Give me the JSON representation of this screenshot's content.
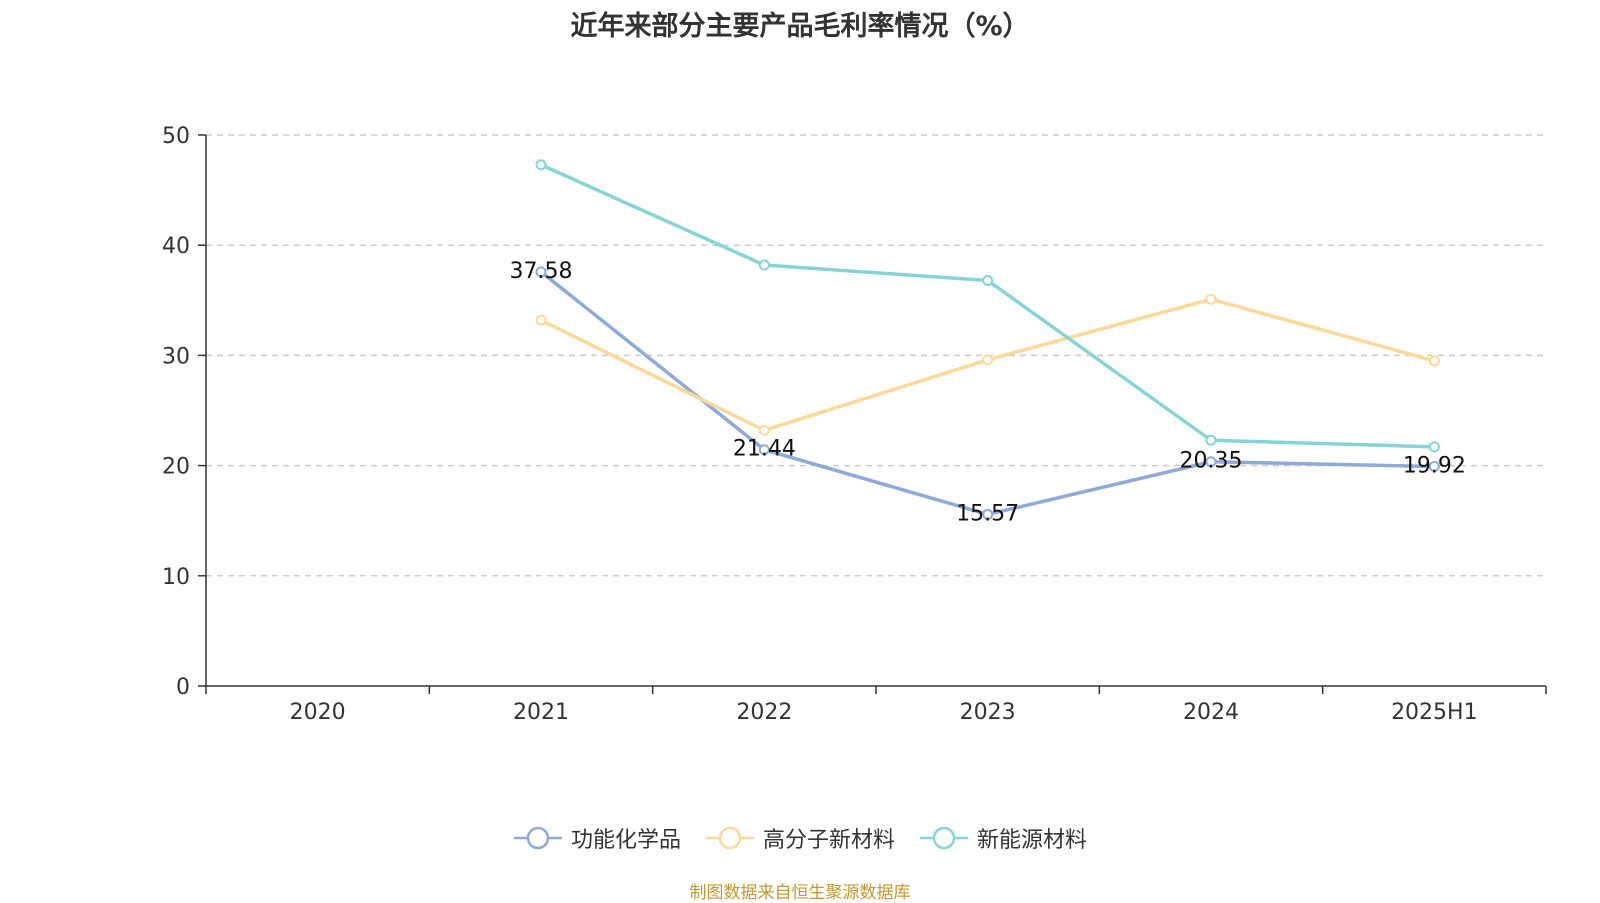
{
  "chart_data": {
    "type": "line",
    "title": "近年来部分主要产品毛利率情况（%）",
    "categories": [
      "2020",
      "2021",
      "2022",
      "2023",
      "2024",
      "2025H1"
    ],
    "ylim": [
      0,
      50
    ],
    "yticks": [
      0,
      10,
      20,
      30,
      40,
      50
    ],
    "grid": true,
    "legend_position": "bottom",
    "series": [
      {
        "name": "功能化学品",
        "color": "#8eaad8",
        "values": [
          null,
          37.58,
          21.44,
          15.57,
          20.35,
          19.92
        ],
        "labeled": true
      },
      {
        "name": "高分子新材料",
        "color": "#fcd899",
        "values": [
          null,
          33.2,
          23.2,
          29.6,
          35.1,
          29.5
        ],
        "labeled": false
      },
      {
        "name": "新能源材料",
        "color": "#86d4d6",
        "values": [
          null,
          47.3,
          38.2,
          36.8,
          22.3,
          21.7
        ],
        "labeled": false
      }
    ],
    "source": "制图数据来自恒生聚源数据库"
  }
}
